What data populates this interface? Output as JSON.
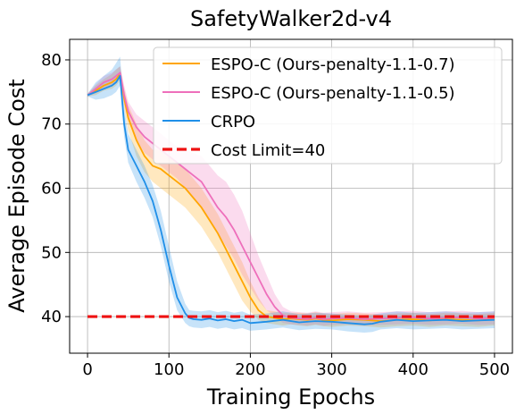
{
  "chart_data": {
    "type": "line",
    "title": "SafetyWalker2d-v4",
    "xlabel": "Training Epochs",
    "ylabel": "Average Episode Cost",
    "xlim": [
      -22,
      522
    ],
    "ylim": [
      34.3,
      83.2
    ],
    "xticks": [
      0,
      100,
      200,
      300,
      400,
      500
    ],
    "yticks": [
      40,
      50,
      60,
      70,
      80
    ],
    "grid": true,
    "legend_position": "top-right",
    "series": [
      {
        "name": "ESPO-C (Ours-penalty-1.1-0.7)",
        "color": "#ffa500",
        "x": [
          0,
          10,
          20,
          30,
          35,
          40,
          45,
          50,
          60,
          70,
          80,
          90,
          100,
          110,
          120,
          130,
          140,
          150,
          160,
          170,
          180,
          190,
          200,
          210,
          220,
          230,
          240,
          250,
          260,
          270,
          280,
          290,
          300,
          320,
          340,
          360,
          380,
          400,
          420,
          440,
          460,
          480,
          500
        ],
        "y": [
          74.5,
          75.2,
          76.0,
          76.5,
          77.0,
          77.8,
          74.0,
          71.0,
          67.5,
          65.0,
          63.5,
          63.0,
          62.0,
          61.0,
          60.0,
          58.5,
          57.0,
          55.0,
          53.0,
          50.5,
          48.0,
          45.5,
          43.0,
          41.0,
          40.0,
          39.8,
          39.6,
          39.7,
          39.6,
          39.5,
          39.7,
          39.5,
          39.4,
          39.6,
          39.5,
          39.3,
          39.5,
          39.6,
          39.4,
          39.6,
          39.5,
          39.4,
          39.6
        ],
        "lower": [
          74.3,
          74.5,
          75.2,
          75.5,
          76.0,
          76.8,
          72.5,
          69.0,
          65.0,
          62.5,
          61.0,
          60.0,
          59.0,
          58.0,
          57.0,
          55.5,
          54.0,
          52.0,
          50.0,
          47.5,
          45.0,
          42.5,
          40.8,
          39.5,
          39.0,
          38.8,
          38.6,
          38.8,
          38.6,
          38.5,
          38.7,
          38.5,
          38.4,
          38.6,
          38.5,
          38.3,
          38.5,
          38.6,
          38.4,
          38.6,
          38.5,
          38.4,
          38.6
        ],
        "upper": [
          74.7,
          76.0,
          77.0,
          77.8,
          78.5,
          79.0,
          75.5,
          73.0,
          70.0,
          67.5,
          66.0,
          66.0,
          65.0,
          64.0,
          63.0,
          61.5,
          60.0,
          58.0,
          56.0,
          53.5,
          51.0,
          48.5,
          45.5,
          43.0,
          41.0,
          40.8,
          40.6,
          40.6,
          40.6,
          40.5,
          40.7,
          40.5,
          40.4,
          40.6,
          40.5,
          40.3,
          40.5,
          40.6,
          40.4,
          40.6,
          40.5,
          40.4,
          40.6
        ]
      },
      {
        "name": "ESPO-C (Ours-penalty-1.1-0.5)",
        "color": "#ee6fbb",
        "x": [
          0,
          10,
          20,
          30,
          35,
          40,
          45,
          50,
          60,
          70,
          80,
          90,
          100,
          110,
          120,
          130,
          140,
          150,
          160,
          170,
          180,
          190,
          200,
          210,
          220,
          230,
          240,
          250,
          260,
          270,
          280,
          290,
          300,
          320,
          340,
          360,
          380,
          400,
          420,
          440,
          460,
          480,
          500
        ],
        "y": [
          74.5,
          75.5,
          76.5,
          77.0,
          77.5,
          78.0,
          74.5,
          72.0,
          69.5,
          68.0,
          67.0,
          66.0,
          65.0,
          64.0,
          63.0,
          62.0,
          61.0,
          59.0,
          57.0,
          55.5,
          53.5,
          51.0,
          48.5,
          46.0,
          43.5,
          41.5,
          40.2,
          39.8,
          39.7,
          39.6,
          39.8,
          39.6,
          39.7,
          39.8,
          39.6,
          39.7,
          39.8,
          39.9,
          39.7,
          39.8,
          39.9,
          39.7,
          39.8
        ],
        "lower": [
          74.3,
          74.8,
          75.5,
          76.0,
          76.5,
          77.0,
          73.0,
          70.5,
          67.5,
          65.5,
          64.5,
          63.5,
          62.5,
          61.5,
          60.0,
          58.5,
          57.0,
          55.0,
          53.0,
          51.0,
          49.0,
          46.5,
          44.5,
          42.5,
          41.0,
          40.0,
          39.0,
          38.8,
          38.7,
          38.6,
          38.8,
          38.6,
          38.7,
          38.8,
          38.6,
          38.7,
          38.8,
          38.9,
          38.7,
          38.8,
          38.9,
          38.7,
          38.8
        ],
        "upper": [
          74.7,
          76.2,
          77.5,
          78.0,
          78.5,
          79.0,
          76.0,
          73.5,
          71.5,
          70.5,
          69.5,
          68.5,
          67.5,
          66.5,
          66.0,
          65.5,
          65.0,
          63.5,
          62.0,
          61.0,
          59.0,
          56.5,
          53.0,
          49.5,
          46.5,
          43.5,
          41.5,
          40.8,
          40.7,
          40.6,
          40.8,
          40.6,
          40.7,
          40.8,
          40.6,
          40.7,
          40.8,
          40.9,
          40.7,
          40.8,
          40.9,
          40.7,
          40.8
        ]
      },
      {
        "name": "CRPO",
        "color": "#1f8fe8",
        "x": [
          0,
          10,
          20,
          30,
          35,
          40,
          45,
          50,
          60,
          70,
          80,
          90,
          100,
          110,
          120,
          125,
          130,
          140,
          150,
          160,
          170,
          180,
          190,
          200,
          220,
          240,
          260,
          280,
          300,
          320,
          340,
          350,
          360,
          380,
          400,
          420,
          440,
          460,
          480,
          500
        ],
        "y": [
          74.5,
          75.0,
          75.5,
          76.0,
          76.5,
          77.5,
          70.0,
          66.0,
          63.5,
          61.0,
          58.0,
          53.5,
          48.0,
          43.0,
          40.5,
          39.8,
          39.6,
          39.5,
          39.7,
          39.4,
          39.6,
          39.3,
          39.5,
          39.0,
          39.2,
          39.5,
          39.1,
          39.3,
          39.2,
          39.0,
          38.8,
          38.9,
          39.2,
          39.5,
          39.3,
          39.4,
          39.5,
          39.3,
          39.4,
          39.5
        ],
        "lower": [
          74.3,
          73.8,
          74.0,
          74.5,
          75.0,
          76.0,
          68.0,
          64.0,
          61.0,
          58.5,
          55.5,
          51.0,
          45.5,
          41.0,
          39.0,
          38.5,
          38.3,
          38.2,
          38.4,
          38.1,
          38.3,
          38.0,
          38.2,
          37.8,
          38.0,
          38.3,
          37.9,
          38.1,
          38.0,
          37.7,
          37.5,
          37.6,
          38.0,
          38.2,
          38.0,
          38.1,
          38.2,
          38.0,
          38.1,
          38.2
        ],
        "upper": [
          74.7,
          76.5,
          77.5,
          78.5,
          79.5,
          80.5,
          72.5,
          68.5,
          66.0,
          63.5,
          60.5,
          56.5,
          51.0,
          45.5,
          42.0,
          41.0,
          40.9,
          40.8,
          41.0,
          40.7,
          40.9,
          40.6,
          40.8,
          40.3,
          40.5,
          40.8,
          40.4,
          40.6,
          40.5,
          40.3,
          40.2,
          40.3,
          40.5,
          40.8,
          40.6,
          40.7,
          40.8,
          40.6,
          40.7,
          40.8
        ]
      }
    ],
    "reference_line": {
      "name": "Cost Limit=40",
      "y": 40,
      "x_range": [
        0,
        500
      ],
      "color": "#ee1111",
      "style": "dashed"
    }
  }
}
